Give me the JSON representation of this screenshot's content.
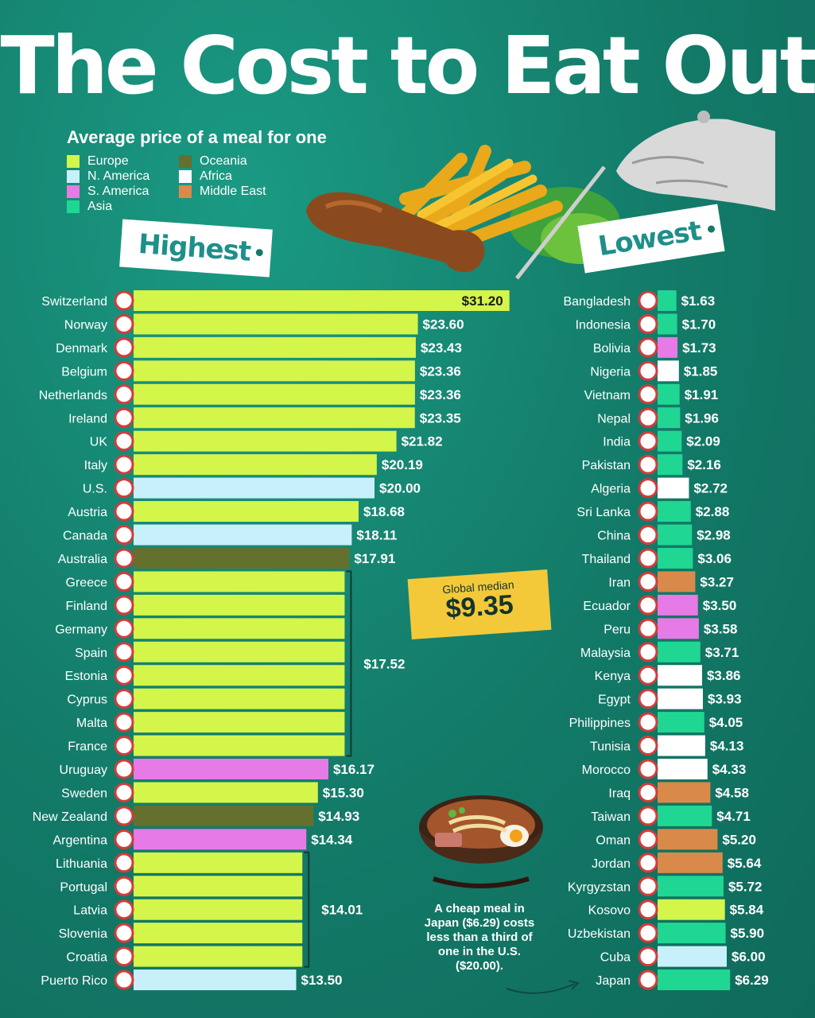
{
  "title": "The Cost to Eat Out",
  "subtitle": "Average price of a meal for one",
  "legend": [
    {
      "label": "Europe",
      "color": "#d4f54a"
    },
    {
      "label": "N. America",
      "color": "#c8f0fa"
    },
    {
      "label": "S. America",
      "color": "#e67ae6"
    },
    {
      "label": "Asia",
      "color": "#20d693"
    },
    {
      "label": "Oceania",
      "color": "#64702e"
    },
    {
      "label": "Africa",
      "color": "#ffffff"
    },
    {
      "label": "Middle East",
      "color": "#d98a4a"
    }
  ],
  "tags": {
    "highest": "Highest",
    "lowest": "Lowest"
  },
  "median": {
    "label": "Global median",
    "value": "$9.35"
  },
  "note": "A cheap meal in Japan ($6.29) costs less than a third of one in the U.S. ($20.00).",
  "chart_data": [
    {
      "type": "bar",
      "orientation": "horizontal",
      "panel": "Highest",
      "value_format": "$",
      "categories": [
        "Switzerland",
        "Norway",
        "Denmark",
        "Belgium",
        "Netherlands",
        "Ireland",
        "UK",
        "Italy",
        "U.S.",
        "Austria",
        "Canada",
        "Australia",
        "Greece",
        "Finland",
        "Germany",
        "Spain",
        "Estonia",
        "Cyprus",
        "Malta",
        "France",
        "Uruguay",
        "Sweden",
        "New Zealand",
        "Argentina",
        "Lithuania",
        "Portugal",
        "Latvia",
        "Slovenia",
        "Croatia",
        "Puerto Rico"
      ],
      "values": [
        31.2,
        23.6,
        23.43,
        23.36,
        23.36,
        23.35,
        21.82,
        20.19,
        20.0,
        18.68,
        18.11,
        17.91,
        17.52,
        17.52,
        17.52,
        17.52,
        17.52,
        17.52,
        17.52,
        17.52,
        16.17,
        15.3,
        14.93,
        14.34,
        14.01,
        14.01,
        14.01,
        14.01,
        14.01,
        13.5
      ],
      "labels": [
        "$31.20",
        "$23.60",
        "$23.43",
        "$23.36",
        "$23.36",
        "$23.35",
        "$21.82",
        "$20.19",
        "$20.00",
        "$18.68",
        "$18.11",
        "$17.91",
        "",
        "",
        "",
        "",
        "",
        "",
        "",
        "",
        "$16.17",
        "$15.30",
        "$14.93",
        "$14.34",
        "",
        "",
        "",
        "",
        "",
        "$13.50"
      ],
      "regions": [
        "Europe",
        "Europe",
        "Europe",
        "Europe",
        "Europe",
        "Europe",
        "Europe",
        "Europe",
        "N. America",
        "Europe",
        "N. America",
        "Oceania",
        "Europe",
        "Europe",
        "Europe",
        "Europe",
        "Europe",
        "Europe",
        "Europe",
        "Europe",
        "S. America",
        "Europe",
        "Oceania",
        "S. America",
        "Europe",
        "Europe",
        "Europe",
        "Europe",
        "Europe",
        "N. America"
      ],
      "groups": [
        {
          "start": 12,
          "end": 19,
          "label": "$17.52"
        },
        {
          "start": 24,
          "end": 28,
          "label": "$14.01"
        }
      ]
    },
    {
      "type": "bar",
      "orientation": "horizontal",
      "panel": "Lowest",
      "value_format": "$",
      "categories": [
        "Bangladesh",
        "Indonesia",
        "Bolivia",
        "Nigeria",
        "Vietnam",
        "Nepal",
        "India",
        "Pakistan",
        "Algeria",
        "Sri Lanka",
        "China",
        "Thailand",
        "Iran",
        "Ecuador",
        "Peru",
        "Malaysia",
        "Kenya",
        "Egypt",
        "Philippines",
        "Tunisia",
        "Morocco",
        "Iraq",
        "Taiwan",
        "Oman",
        "Jordan",
        "Kyrgyzstan",
        "Kosovo",
        "Uzbekistan",
        "Cuba",
        "Japan"
      ],
      "values": [
        1.63,
        1.7,
        1.73,
        1.85,
        1.91,
        1.96,
        2.09,
        2.16,
        2.72,
        2.88,
        2.98,
        3.06,
        3.27,
        3.5,
        3.58,
        3.71,
        3.86,
        3.93,
        4.05,
        4.13,
        4.33,
        4.58,
        4.71,
        5.2,
        5.64,
        5.72,
        5.84,
        5.9,
        6.0,
        6.29
      ],
      "labels": [
        "$1.63",
        "$1.70",
        "$1.73",
        "$1.85",
        "$1.91",
        "$1.96",
        "$2.09",
        "$2.16",
        "$2.72",
        "$2.88",
        "$2.98",
        "$3.06",
        "$3.27",
        "$3.50",
        "$3.58",
        "$3.71",
        "$3.86",
        "$3.93",
        "$4.05",
        "$4.13",
        "$4.33",
        "$4.58",
        "$4.71",
        "$5.20",
        "$5.64",
        "$5.72",
        "$5.84",
        "$5.90",
        "$6.00",
        "$6.29"
      ],
      "regions": [
        "Asia",
        "Asia",
        "S. America",
        "Africa",
        "Asia",
        "Asia",
        "Asia",
        "Asia",
        "Africa",
        "Asia",
        "Asia",
        "Asia",
        "Middle East",
        "S. America",
        "S. America",
        "Asia",
        "Africa",
        "Africa",
        "Asia",
        "Africa",
        "Africa",
        "Middle East",
        "Asia",
        "Middle East",
        "Middle East",
        "Asia",
        "Europe",
        "Asia",
        "N. America",
        "Asia"
      ]
    }
  ]
}
